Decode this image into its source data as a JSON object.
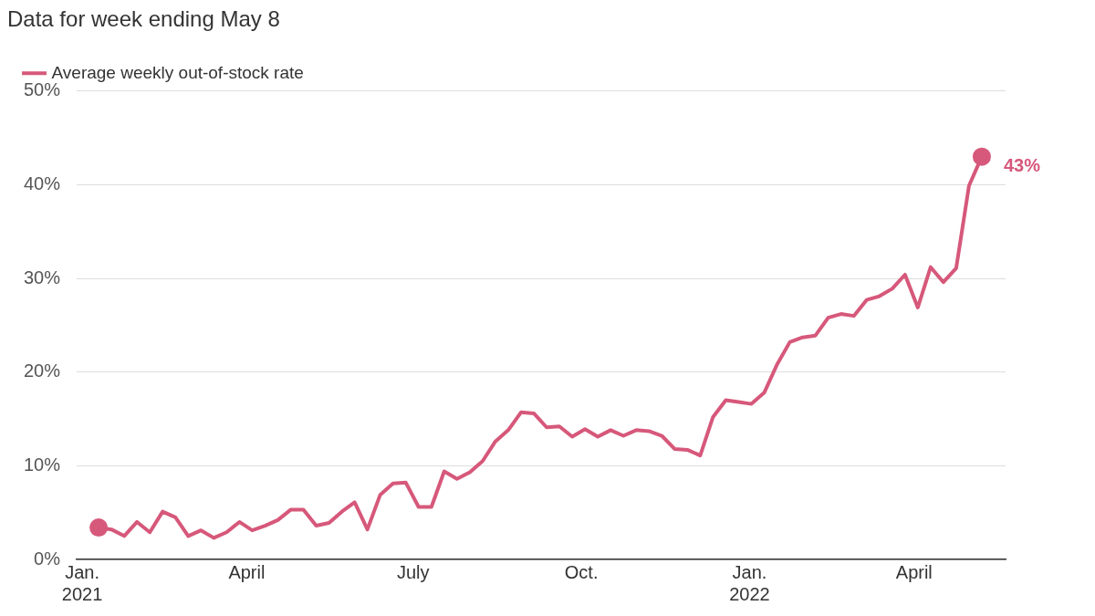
{
  "chart_data": {
    "type": "line",
    "title": "Data for week ending May 8",
    "x": [
      "2021-01-10",
      "2021-01-17",
      "2021-01-24",
      "2021-01-31",
      "2021-02-07",
      "2021-02-14",
      "2021-02-21",
      "2021-02-28",
      "2021-03-07",
      "2021-03-14",
      "2021-03-21",
      "2021-03-28",
      "2021-04-04",
      "2021-04-11",
      "2021-04-18",
      "2021-04-25",
      "2021-05-02",
      "2021-05-09",
      "2021-05-16",
      "2021-05-23",
      "2021-05-30",
      "2021-06-06",
      "2021-06-13",
      "2021-06-20",
      "2021-06-27",
      "2021-07-04",
      "2021-07-11",
      "2021-07-18",
      "2021-07-25",
      "2021-08-01",
      "2021-08-08",
      "2021-08-15",
      "2021-08-22",
      "2021-08-29",
      "2021-09-05",
      "2021-09-12",
      "2021-09-19",
      "2021-09-26",
      "2021-10-03",
      "2021-10-10",
      "2021-10-17",
      "2021-10-24",
      "2021-10-31",
      "2021-11-07",
      "2021-11-14",
      "2021-11-21",
      "2021-11-28",
      "2021-12-05",
      "2021-12-12",
      "2021-12-19",
      "2021-12-26",
      "2022-01-02",
      "2022-01-09",
      "2022-01-16",
      "2022-01-23",
      "2022-01-30",
      "2022-02-06",
      "2022-02-13",
      "2022-02-20",
      "2022-02-27",
      "2022-03-06",
      "2022-03-13",
      "2022-03-20",
      "2022-03-27",
      "2022-04-03",
      "2022-04-10",
      "2022-04-17",
      "2022-04-24",
      "2022-05-01",
      "2022-05-08"
    ],
    "series": [
      {
        "name": "Average weekly out-of-stock rate",
        "color": "#d6587a",
        "values": [
          3.4,
          3.2,
          2.5,
          4.0,
          2.9,
          5.1,
          4.5,
          2.5,
          3.1,
          2.3,
          2.9,
          4.0,
          3.1,
          3.6,
          4.2,
          5.3,
          5.3,
          3.6,
          3.9,
          5.1,
          6.1,
          3.2,
          6.9,
          8.1,
          8.2,
          5.6,
          5.6,
          9.4,
          8.6,
          9.3,
          10.5,
          12.6,
          13.8,
          15.7,
          15.6,
          14.1,
          14.2,
          13.1,
          13.9,
          13.1,
          13.8,
          13.2,
          13.8,
          13.7,
          13.2,
          11.8,
          11.7,
          11.1,
          15.2,
          17.0,
          16.8,
          16.6,
          17.8,
          20.8,
          23.2,
          23.7,
          23.9,
          25.8,
          26.2,
          26.0,
          27.7,
          28.1,
          28.9,
          30.4,
          26.9,
          31.2,
          29.6,
          31.1,
          39.9,
          43
        ]
      }
    ],
    "xlim": [
      "2020-12-29",
      "2022-05-21"
    ],
    "xticks": [
      {
        "value": "2021-01-01",
        "label": "Jan. 2021"
      },
      {
        "value": "2021-04-01",
        "label": "April"
      },
      {
        "value": "2021-07-01",
        "label": "July"
      },
      {
        "value": "2021-10-01",
        "label": "Oct."
      },
      {
        "value": "2022-01-01",
        "label": "Jan. 2022"
      },
      {
        "value": "2022-04-01",
        "label": "April"
      }
    ],
    "ylim": [
      0,
      50
    ],
    "yticks": [
      {
        "value": 0,
        "label": "0%"
      },
      {
        "value": 10,
        "label": "10%"
      },
      {
        "value": 20,
        "label": "20%"
      },
      {
        "value": 30,
        "label": "30%"
      },
      {
        "value": 40,
        "label": "40%"
      },
      {
        "value": 50,
        "label": "50%"
      }
    ],
    "annotations": [
      {
        "text": "43%",
        "x": "2022-05-08",
        "y": 43
      }
    ],
    "grid": "y",
    "legend": "top left",
    "line_style": "solid"
  }
}
